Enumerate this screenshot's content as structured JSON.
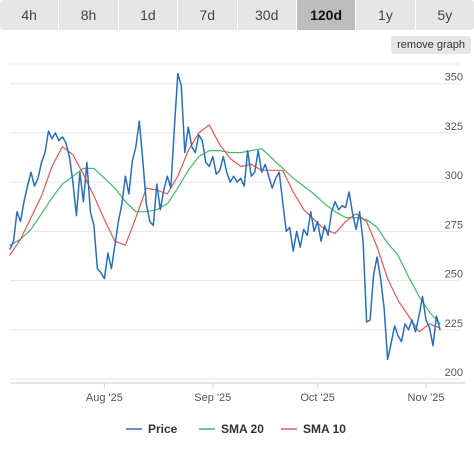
{
  "tabs": [
    {
      "label": "4h",
      "active": false
    },
    {
      "label": "8h",
      "active": false
    },
    {
      "label": "1d",
      "active": false
    },
    {
      "label": "7d",
      "active": false
    },
    {
      "label": "30d",
      "active": false
    },
    {
      "label": "120d",
      "active": true
    },
    {
      "label": "1y",
      "active": false
    },
    {
      "label": "5y",
      "active": false
    }
  ],
  "remove_graph_label": "remove graph",
  "chart_data": {
    "type": "line",
    "title": "",
    "xlabel": "",
    "ylabel": "",
    "ylim": [
      198,
      360
    ],
    "yticks": [
      200,
      225,
      250,
      275,
      300,
      325,
      350
    ],
    "xlim": [
      "2025-07-05",
      "2025-11-05"
    ],
    "xticks": [
      {
        "label": "Aug '25",
        "date": "2025-08-01"
      },
      {
        "label": "Sep '25",
        "date": "2025-09-01"
      },
      {
        "label": "Oct '25",
        "date": "2025-10-01"
      },
      {
        "label": "Nov '25",
        "date": "2025-11-01"
      }
    ],
    "grid": true,
    "legend": "bottom",
    "series": [
      {
        "name": "Price",
        "color": "#2a6ebb",
        "points": [
          [
            "2025-07-05",
            266
          ],
          [
            "2025-07-06",
            270
          ],
          [
            "2025-07-07",
            285
          ],
          [
            "2025-07-08",
            280
          ],
          [
            "2025-07-09",
            290
          ],
          [
            "2025-07-10",
            298
          ],
          [
            "2025-07-11",
            305
          ],
          [
            "2025-07-12",
            298
          ],
          [
            "2025-07-13",
            302
          ],
          [
            "2025-07-14",
            310
          ],
          [
            "2025-07-15",
            315
          ],
          [
            "2025-07-16",
            326
          ],
          [
            "2025-07-17",
            322
          ],
          [
            "2025-07-18",
            325
          ],
          [
            "2025-07-19",
            321
          ],
          [
            "2025-07-20",
            323
          ],
          [
            "2025-07-21",
            320
          ],
          [
            "2025-07-22",
            313
          ],
          [
            "2025-07-23",
            300
          ],
          [
            "2025-07-24",
            283
          ],
          [
            "2025-07-25",
            305
          ],
          [
            "2025-07-26",
            290
          ],
          [
            "2025-07-27",
            310
          ],
          [
            "2025-07-28",
            285
          ],
          [
            "2025-07-29",
            278
          ],
          [
            "2025-07-30",
            256
          ],
          [
            "2025-07-31",
            254
          ],
          [
            "2025-08-01",
            251
          ],
          [
            "2025-08-02",
            264
          ],
          [
            "2025-08-03",
            256
          ],
          [
            "2025-08-04",
            268
          ],
          [
            "2025-08-05",
            280
          ],
          [
            "2025-08-06",
            289
          ],
          [
            "2025-08-07",
            303
          ],
          [
            "2025-08-08",
            294
          ],
          [
            "2025-08-09",
            311
          ],
          [
            "2025-08-10",
            318
          ],
          [
            "2025-08-11",
            331
          ],
          [
            "2025-08-12",
            311
          ],
          [
            "2025-08-13",
            289
          ],
          [
            "2025-08-14",
            280
          ],
          [
            "2025-08-15",
            278
          ],
          [
            "2025-08-16",
            299
          ],
          [
            "2025-08-17",
            286
          ],
          [
            "2025-08-18",
            296
          ],
          [
            "2025-08-19",
            303
          ],
          [
            "2025-08-20",
            297
          ],
          [
            "2025-08-21",
            327
          ],
          [
            "2025-08-22",
            355
          ],
          [
            "2025-08-23",
            349
          ],
          [
            "2025-08-24",
            315
          ],
          [
            "2025-08-25",
            328
          ],
          [
            "2025-08-26",
            318
          ],
          [
            "2025-08-27",
            315
          ],
          [
            "2025-08-28",
            324
          ],
          [
            "2025-08-29",
            321
          ],
          [
            "2025-08-30",
            310
          ],
          [
            "2025-08-31",
            308
          ],
          [
            "2025-09-01",
            313
          ],
          [
            "2025-09-02",
            304
          ],
          [
            "2025-09-03",
            306
          ],
          [
            "2025-09-04",
            313
          ],
          [
            "2025-09-05",
            305
          ],
          [
            "2025-09-06",
            300
          ],
          [
            "2025-09-07",
            303
          ],
          [
            "2025-09-08",
            300
          ],
          [
            "2025-09-09",
            302
          ],
          [
            "2025-09-10",
            298
          ],
          [
            "2025-09-11",
            316
          ],
          [
            "2025-09-12",
            303
          ],
          [
            "2025-09-13",
            305
          ],
          [
            "2025-09-14",
            316
          ],
          [
            "2025-09-15",
            305
          ],
          [
            "2025-09-16",
            309
          ],
          [
            "2025-09-17",
            303
          ],
          [
            "2025-09-18",
            297
          ],
          [
            "2025-09-19",
            302
          ],
          [
            "2025-09-20",
            305
          ],
          [
            "2025-09-21",
            290
          ],
          [
            "2025-09-22",
            275
          ],
          [
            "2025-09-23",
            277
          ],
          [
            "2025-09-24",
            265
          ],
          [
            "2025-09-25",
            275
          ],
          [
            "2025-09-26",
            267
          ],
          [
            "2025-09-27",
            276
          ],
          [
            "2025-09-28",
            273
          ],
          [
            "2025-09-29",
            285
          ],
          [
            "2025-09-30",
            275
          ],
          [
            "2025-10-01",
            280
          ],
          [
            "2025-10-02",
            270
          ],
          [
            "2025-10-03",
            278
          ],
          [
            "2025-10-04",
            273
          ],
          [
            "2025-10-05",
            285
          ],
          [
            "2025-10-06",
            290
          ],
          [
            "2025-10-07",
            286
          ],
          [
            "2025-10-08",
            288
          ],
          [
            "2025-10-09",
            287
          ],
          [
            "2025-10-10",
            295
          ],
          [
            "2025-10-11",
            284
          ],
          [
            "2025-10-12",
            276
          ],
          [
            "2025-10-13",
            285
          ],
          [
            "2025-10-14",
            270
          ],
          [
            "2025-10-15",
            229
          ],
          [
            "2025-10-16",
            230
          ],
          [
            "2025-10-17",
            253
          ],
          [
            "2025-10-18",
            262
          ],
          [
            "2025-10-19",
            251
          ],
          [
            "2025-10-20",
            236
          ],
          [
            "2025-10-21",
            210
          ],
          [
            "2025-10-22",
            218
          ],
          [
            "2025-10-23",
            227
          ],
          [
            "2025-10-24",
            222
          ],
          [
            "2025-10-25",
            219
          ],
          [
            "2025-10-26",
            228
          ],
          [
            "2025-10-27",
            225
          ],
          [
            "2025-10-28",
            230
          ],
          [
            "2025-10-29",
            224
          ],
          [
            "2025-10-30",
            232
          ],
          [
            "2025-10-31",
            242
          ],
          [
            "2025-11-01",
            230
          ],
          [
            "2025-11-02",
            226
          ],
          [
            "2025-11-03",
            217
          ],
          [
            "2025-11-04",
            232
          ],
          [
            "2025-11-05",
            225
          ]
        ]
      },
      {
        "name": "SMA 20",
        "color": "#44b86b",
        "points": [
          [
            "2025-07-05",
            268
          ],
          [
            "2025-07-08",
            271
          ],
          [
            "2025-07-11",
            276
          ],
          [
            "2025-07-14",
            284
          ],
          [
            "2025-07-17",
            292
          ],
          [
            "2025-07-20",
            299
          ],
          [
            "2025-07-23",
            303
          ],
          [
            "2025-07-26",
            307
          ],
          [
            "2025-07-29",
            307
          ],
          [
            "2025-08-01",
            302
          ],
          [
            "2025-08-04",
            297
          ],
          [
            "2025-08-07",
            290
          ],
          [
            "2025-08-10",
            285
          ],
          [
            "2025-08-13",
            285
          ],
          [
            "2025-08-16",
            286
          ],
          [
            "2025-08-19",
            289
          ],
          [
            "2025-08-22",
            297
          ],
          [
            "2025-08-25",
            306
          ],
          [
            "2025-08-28",
            313
          ],
          [
            "2025-08-31",
            316
          ],
          [
            "2025-09-03",
            316
          ],
          [
            "2025-09-06",
            315
          ],
          [
            "2025-09-09",
            315
          ],
          [
            "2025-09-12",
            316
          ],
          [
            "2025-09-15",
            317
          ],
          [
            "2025-09-18",
            312
          ],
          [
            "2025-09-21",
            307
          ],
          [
            "2025-09-24",
            302
          ],
          [
            "2025-09-27",
            298
          ],
          [
            "2025-09-30",
            294
          ],
          [
            "2025-10-03",
            289
          ],
          [
            "2025-10-06",
            285
          ],
          [
            "2025-10-09",
            282
          ],
          [
            "2025-10-12",
            282
          ],
          [
            "2025-10-15",
            281
          ],
          [
            "2025-10-18",
            277
          ],
          [
            "2025-10-21",
            269
          ],
          [
            "2025-10-24",
            263
          ],
          [
            "2025-10-27",
            252
          ],
          [
            "2025-10-30",
            242
          ],
          [
            "2025-11-02",
            234
          ],
          [
            "2025-11-05",
            228
          ]
        ]
      },
      {
        "name": "SMA 10",
        "color": "#e15b4f",
        "points": [
          [
            "2025-07-05",
            263
          ],
          [
            "2025-07-08",
            271
          ],
          [
            "2025-07-11",
            282
          ],
          [
            "2025-07-14",
            293
          ],
          [
            "2025-07-17",
            308
          ],
          [
            "2025-07-20",
            318
          ],
          [
            "2025-07-23",
            314
          ],
          [
            "2025-07-26",
            304
          ],
          [
            "2025-07-29",
            293
          ],
          [
            "2025-08-01",
            281
          ],
          [
            "2025-08-04",
            270
          ],
          [
            "2025-08-07",
            268
          ],
          [
            "2025-08-10",
            282
          ],
          [
            "2025-08-13",
            297
          ],
          [
            "2025-08-16",
            296
          ],
          [
            "2025-08-19",
            294
          ],
          [
            "2025-08-22",
            303
          ],
          [
            "2025-08-25",
            316
          ],
          [
            "2025-08-28",
            325
          ],
          [
            "2025-08-31",
            329
          ],
          [
            "2025-09-03",
            319
          ],
          [
            "2025-09-06",
            312
          ],
          [
            "2025-09-09",
            308
          ],
          [
            "2025-09-12",
            309
          ],
          [
            "2025-09-15",
            306
          ],
          [
            "2025-09-18",
            306
          ],
          [
            "2025-09-21",
            306
          ],
          [
            "2025-09-24",
            295
          ],
          [
            "2025-09-27",
            286
          ],
          [
            "2025-09-30",
            281
          ],
          [
            "2025-10-03",
            276
          ],
          [
            "2025-10-06",
            274
          ],
          [
            "2025-10-09",
            280
          ],
          [
            "2025-10-12",
            284
          ],
          [
            "2025-10-15",
            280
          ],
          [
            "2025-10-18",
            267
          ],
          [
            "2025-10-21",
            251
          ],
          [
            "2025-10-24",
            240
          ],
          [
            "2025-10-27",
            232
          ],
          [
            "2025-10-30",
            224
          ],
          [
            "2025-11-02",
            228
          ],
          [
            "2025-11-05",
            226
          ]
        ]
      }
    ]
  }
}
